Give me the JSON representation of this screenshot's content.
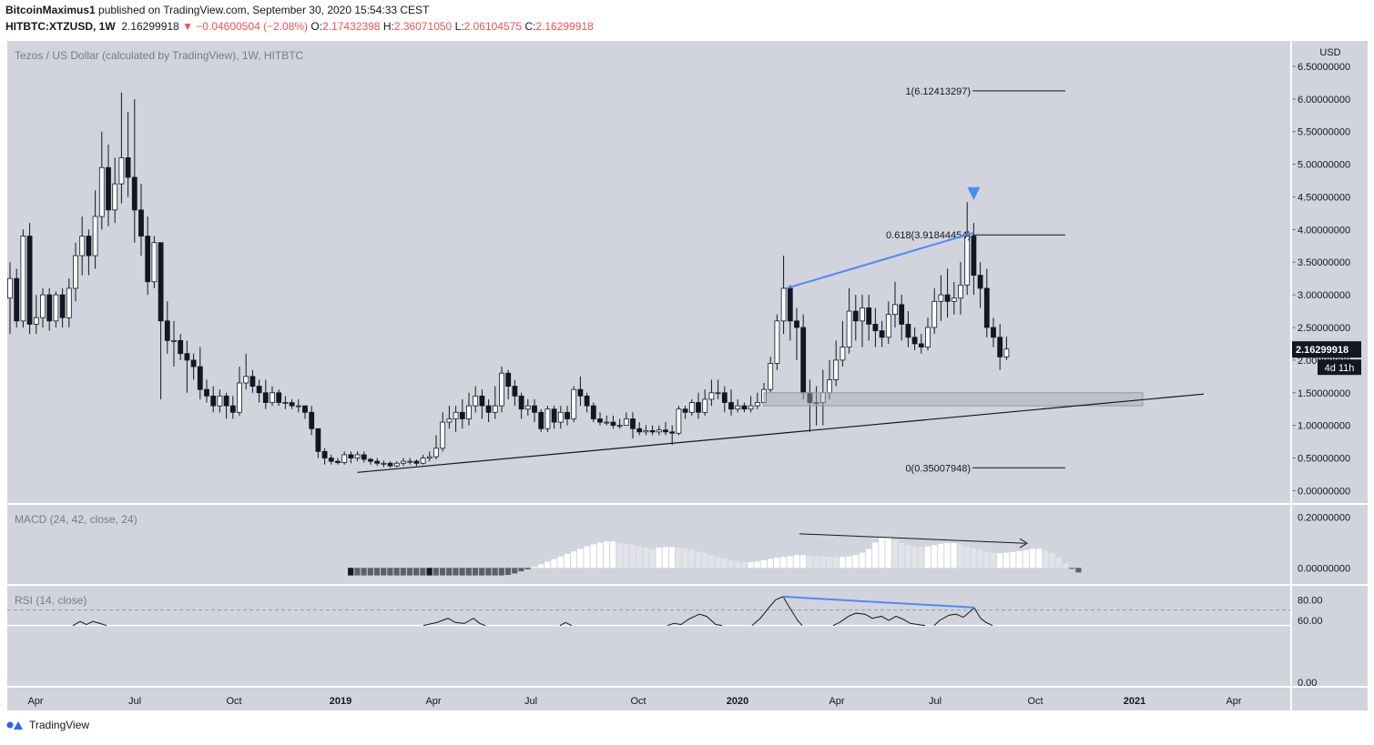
{
  "header": {
    "author": "BitcoinMaximus1",
    "published": "published on TradingView.com, September 30, 2020 15:54:33 CEST",
    "symbol": "HITBTC:XTZUSD, 1W",
    "last": "2.16299918",
    "change": "▼ −0.04600504 (−2.08%)",
    "o_label": "O:",
    "o_value": "2.17432398",
    "h_label": "H:",
    "h_value": "2.36071050",
    "l_label": "L:",
    "l_value": "2.06104575",
    "c_label": "C:",
    "c_value": "2.16299918"
  },
  "footer": {
    "brand": "TradingView"
  },
  "colors": {
    "pane_bg": "#d1d4dc",
    "bull": "#ffffff",
    "bear": "#131722",
    "blue": "#4c8bf5",
    "hist_light": "#ffffff",
    "hist_dark": "#5d606b"
  },
  "chart_data": [
    {
      "type": "candlestick",
      "title": "Tezos / US Dollar (calculated by TradingView), 1W, HITBTC",
      "y_axis_title": "USD",
      "ylim": [
        -0.05,
        6.75
      ],
      "y_ticks": [
        "6.50000000",
        "6.00000000",
        "5.50000000",
        "5.00000000",
        "4.50000000",
        "4.00000000",
        "3.50000000",
        "3.00000000",
        "2.50000000",
        "2.00000000",
        "1.50000000",
        "1.00000000",
        "0.50000000",
        "0.00000000"
      ],
      "y_tick_values": [
        6.5,
        6.0,
        5.5,
        5.0,
        4.5,
        4.0,
        3.5,
        3.0,
        2.5,
        2.0,
        1.5,
        1.0,
        0.5,
        0.0
      ],
      "x_ticks": [
        "Apr",
        "Jul",
        "Oct",
        "2019",
        "Apr",
        "Jul",
        "Oct",
        "2020",
        "Apr",
        "Jul",
        "Oct",
        "2021",
        "Apr"
      ],
      "x_tick_bold": [
        false,
        false,
        false,
        true,
        false,
        false,
        false,
        true,
        false,
        false,
        false,
        true,
        false
      ],
      "last_price_label": "2.16299918",
      "countdown_label": "4d 11h",
      "candles": [
        [
          2.95,
          3.25,
          2.4,
          3.5
        ],
        [
          3.25,
          2.6,
          2.5,
          3.4
        ],
        [
          2.6,
          3.9,
          2.5,
          4.0
        ],
        [
          3.9,
          2.55,
          2.4,
          4.1
        ],
        [
          2.55,
          2.65,
          2.4,
          3.0
        ],
        [
          2.65,
          3.0,
          2.5,
          3.1
        ],
        [
          3.0,
          2.6,
          2.45,
          3.1
        ],
        [
          2.6,
          3.0,
          2.5,
          3.05
        ],
        [
          3.0,
          2.65,
          2.5,
          3.1
        ],
        [
          2.65,
          3.1,
          2.5,
          3.25
        ],
        [
          3.1,
          3.6,
          2.9,
          3.8
        ],
        [
          3.6,
          3.9,
          3.3,
          4.2
        ],
        [
          3.9,
          3.6,
          3.3,
          4.0
        ],
        [
          3.6,
          4.2,
          3.4,
          4.6
        ],
        [
          4.2,
          4.95,
          4.0,
          5.5
        ],
        [
          4.95,
          4.3,
          4.05,
          5.3
        ],
        [
          4.3,
          4.7,
          4.1,
          5.1
        ],
        [
          4.7,
          5.1,
          4.4,
          6.1
        ],
        [
          5.1,
          4.8,
          4.5,
          5.8
        ],
        [
          4.8,
          4.3,
          3.8,
          6.0
        ],
        [
          4.3,
          3.9,
          3.6,
          4.7
        ],
        [
          3.9,
          3.2,
          3.0,
          4.2
        ],
        [
          3.2,
          3.8,
          3.1,
          3.9
        ],
        [
          3.8,
          2.6,
          1.4,
          3.8
        ],
        [
          2.6,
          2.3,
          2.1,
          2.9
        ],
        [
          2.3,
          2.3,
          1.9,
          2.6
        ],
        [
          2.3,
          2.1,
          2.0,
          2.4
        ],
        [
          2.1,
          2.0,
          1.5,
          2.3
        ],
        [
          2.0,
          1.9,
          1.7,
          2.1
        ],
        [
          1.9,
          1.55,
          1.4,
          2.2
        ],
        [
          1.55,
          1.45,
          1.35,
          1.7
        ],
        [
          1.45,
          1.3,
          1.2,
          1.6
        ],
        [
          1.3,
          1.45,
          1.2,
          1.55
        ],
        [
          1.45,
          1.3,
          1.1,
          1.5
        ],
        [
          1.3,
          1.2,
          1.1,
          1.45
        ],
        [
          1.2,
          1.65,
          1.15,
          1.9
        ],
        [
          1.65,
          1.75,
          1.55,
          2.1
        ],
        [
          1.75,
          1.6,
          1.5,
          1.85
        ],
        [
          1.6,
          1.5,
          1.35,
          1.7
        ],
        [
          1.5,
          1.35,
          1.25,
          1.7
        ],
        [
          1.35,
          1.5,
          1.3,
          1.6
        ],
        [
          1.5,
          1.35,
          1.3,
          1.55
        ],
        [
          1.35,
          1.35,
          1.25,
          1.45
        ],
        [
          1.35,
          1.3,
          1.25,
          1.4
        ],
        [
          1.3,
          1.3,
          1.2,
          1.4
        ],
        [
          1.3,
          1.2,
          1.1,
          1.3
        ],
        [
          1.2,
          0.95,
          0.85,
          1.3
        ],
        [
          0.95,
          0.6,
          0.5,
          0.95
        ],
        [
          0.6,
          0.5,
          0.4,
          0.65
        ],
        [
          0.5,
          0.45,
          0.4,
          0.55
        ],
        [
          0.45,
          0.43,
          0.4,
          0.5
        ],
        [
          0.43,
          0.55,
          0.4,
          0.6
        ],
        [
          0.55,
          0.5,
          0.42,
          0.6
        ],
        [
          0.5,
          0.55,
          0.45,
          0.6
        ],
        [
          0.55,
          0.48,
          0.43,
          0.6
        ],
        [
          0.48,
          0.45,
          0.4,
          0.5
        ],
        [
          0.45,
          0.42,
          0.38,
          0.5
        ],
        [
          0.42,
          0.42,
          0.36,
          0.46
        ],
        [
          0.42,
          0.38,
          0.35,
          0.45
        ],
        [
          0.38,
          0.42,
          0.36,
          0.45
        ],
        [
          0.42,
          0.45,
          0.38,
          0.5
        ],
        [
          0.45,
          0.45,
          0.4,
          0.5
        ],
        [
          0.45,
          0.42,
          0.38,
          0.48
        ],
        [
          0.42,
          0.5,
          0.4,
          0.55
        ],
        [
          0.5,
          0.52,
          0.45,
          0.6
        ],
        [
          0.52,
          0.65,
          0.48,
          0.85
        ],
        [
          0.65,
          1.05,
          0.6,
          1.2
        ],
        [
          1.05,
          1.1,
          0.95,
          1.3
        ],
        [
          1.1,
          1.2,
          0.9,
          1.3
        ],
        [
          1.2,
          1.1,
          0.95,
          1.4
        ],
        [
          1.1,
          1.3,
          1.0,
          1.5
        ],
        [
          1.3,
          1.45,
          1.2,
          1.6
        ],
        [
          1.45,
          1.3,
          1.1,
          1.55
        ],
        [
          1.3,
          1.2,
          1.05,
          1.4
        ],
        [
          1.2,
          1.3,
          1.1,
          1.6
        ],
        [
          1.3,
          1.8,
          1.2,
          1.9
        ],
        [
          1.8,
          1.6,
          1.4,
          1.85
        ],
        [
          1.6,
          1.45,
          1.3,
          1.7
        ],
        [
          1.45,
          1.25,
          1.1,
          1.5
        ],
        [
          1.25,
          1.3,
          1.15,
          1.4
        ],
        [
          1.3,
          1.2,
          1.05,
          1.4
        ],
        [
          1.2,
          0.95,
          0.9,
          1.25
        ],
        [
          0.95,
          1.25,
          0.9,
          1.3
        ],
        [
          1.25,
          1.05,
          0.95,
          1.3
        ],
        [
          1.05,
          1.2,
          0.95,
          1.3
        ],
        [
          1.2,
          1.1,
          1.0,
          1.3
        ],
        [
          1.1,
          1.55,
          1.05,
          1.6
        ],
        [
          1.55,
          1.45,
          1.3,
          1.75
        ],
        [
          1.45,
          1.3,
          1.2,
          1.5
        ],
        [
          1.3,
          1.1,
          1.05,
          1.35
        ],
        [
          1.1,
          1.05,
          1.0,
          1.2
        ],
        [
          1.05,
          1.05,
          1.0,
          1.15
        ],
        [
          1.05,
          1.0,
          0.95,
          1.15
        ],
        [
          1.0,
          1.0,
          0.95,
          1.1
        ],
        [
          1.0,
          1.1,
          1.0,
          1.2
        ],
        [
          1.1,
          0.95,
          0.8,
          1.2
        ],
        [
          0.95,
          0.9,
          0.85,
          1.05
        ],
        [
          0.9,
          0.92,
          0.85,
          1.0
        ],
        [
          0.92,
          0.9,
          0.85,
          1.0
        ],
        [
          0.9,
          0.93,
          0.85,
          1.0
        ],
        [
          0.93,
          0.9,
          0.85,
          1.05
        ],
        [
          0.9,
          0.88,
          0.7,
          1.0
        ],
        [
          0.88,
          1.25,
          0.85,
          1.3
        ],
        [
          1.25,
          1.2,
          1.1,
          1.3
        ],
        [
          1.2,
          1.35,
          1.15,
          1.4
        ],
        [
          1.35,
          1.2,
          1.1,
          1.5
        ],
        [
          1.2,
          1.4,
          1.15,
          1.55
        ],
        [
          1.4,
          1.5,
          1.3,
          1.7
        ],
        [
          1.5,
          1.5,
          1.4,
          1.7
        ],
        [
          1.5,
          1.35,
          1.2,
          1.6
        ],
        [
          1.35,
          1.25,
          1.15,
          1.55
        ],
        [
          1.25,
          1.3,
          1.2,
          1.4
        ],
        [
          1.3,
          1.25,
          1.2,
          1.35
        ],
        [
          1.25,
          1.3,
          1.2,
          1.45
        ],
        [
          1.3,
          1.35,
          1.25,
          1.5
        ],
        [
          1.35,
          1.55,
          1.3,
          1.65
        ],
        [
          1.55,
          1.95,
          1.5,
          2.05
        ],
        [
          1.95,
          2.6,
          1.85,
          2.7
        ],
        [
          2.6,
          3.1,
          2.4,
          3.6
        ],
        [
          3.1,
          2.6,
          2.3,
          3.15
        ],
        [
          2.6,
          2.5,
          2.0,
          2.8
        ],
        [
          2.5,
          1.5,
          1.4,
          2.7
        ],
        [
          1.5,
          1.35,
          0.9,
          1.7
        ],
        [
          1.35,
          1.35,
          1.0,
          1.6
        ],
        [
          1.35,
          1.5,
          1.0,
          1.85
        ],
        [
          1.5,
          1.7,
          1.4,
          2.0
        ],
        [
          1.7,
          2.0,
          1.6,
          2.3
        ],
        [
          2.0,
          2.2,
          1.9,
          2.6
        ],
        [
          2.2,
          2.75,
          2.1,
          3.1
        ],
        [
          2.75,
          2.6,
          2.3,
          3.0
        ],
        [
          2.6,
          2.8,
          2.2,
          3.0
        ],
        [
          2.8,
          2.55,
          2.3,
          3.0
        ],
        [
          2.55,
          2.45,
          2.2,
          2.8
        ],
        [
          2.45,
          2.35,
          2.2,
          2.6
        ],
        [
          2.35,
          2.7,
          2.25,
          2.9
        ],
        [
          2.7,
          2.85,
          2.5,
          3.2
        ],
        [
          2.85,
          2.55,
          2.3,
          3.0
        ],
        [
          2.55,
          2.35,
          2.2,
          2.75
        ],
        [
          2.35,
          2.25,
          2.15,
          2.5
        ],
        [
          2.25,
          2.2,
          2.1,
          2.4
        ],
        [
          2.2,
          2.5,
          2.15,
          2.65
        ],
        [
          2.5,
          2.9,
          2.4,
          3.1
        ],
        [
          2.9,
          3.0,
          2.6,
          3.3
        ],
        [
          3.0,
          2.9,
          2.65,
          3.4
        ],
        [
          2.9,
          2.95,
          2.7,
          3.2
        ],
        [
          2.95,
          3.15,
          2.7,
          3.5
        ],
        [
          3.15,
          3.9,
          3.0,
          4.42
        ],
        [
          3.9,
          3.3,
          3.0,
          4.1
        ],
        [
          3.3,
          3.1,
          2.8,
          3.5
        ],
        [
          3.1,
          2.5,
          2.35,
          3.4
        ],
        [
          2.5,
          2.35,
          2.2,
          2.65
        ],
        [
          2.35,
          2.05,
          1.85,
          2.55
        ],
        [
          2.05,
          2.17,
          2.0,
          2.36
        ]
      ],
      "fib_levels": [
        {
          "label": "1(6.12413297)",
          "value": 6.12413297
        },
        {
          "label": "0.618(3.91844454)",
          "value": 3.91844454
        },
        {
          "label": "0(0.35007948)",
          "value": 0.35007948
        }
      ],
      "trendline": {
        "from": [
          3.1,
          0.28
        ],
        "to": [
          2.97,
          1.48
        ],
        "candle_from": 53,
        "candle_to_x_extension": true
      },
      "support_zone": [
        1.3,
        1.5
      ],
      "bearish_divergence_line": [
        3.1,
        3.95
      ]
    },
    {
      "type": "bar",
      "title": "MACD (24, 42, close, 24)",
      "ylim": [
        -0.035,
        0.22
      ],
      "y_ticks": [
        "0.20000000",
        "0.00000000"
      ],
      "y_tick_values": [
        0.2,
        0.0
      ],
      "hist": [
        -0.03,
        -0.03,
        -0.03,
        -0.03,
        -0.03,
        -0.03,
        -0.03,
        -0.03,
        -0.03,
        -0.03,
        -0.03,
        -0.03,
        -0.03,
        -0.03,
        -0.03,
        -0.03,
        -0.03,
        -0.03,
        -0.03,
        -0.03,
        -0.03,
        -0.03,
        -0.03,
        -0.03,
        -0.028,
        -0.022,
        -0.014,
        -0.006,
        0.004,
        0.014,
        0.024,
        0.034,
        0.045,
        0.055,
        0.065,
        0.075,
        0.085,
        0.093,
        0.1,
        0.104,
        0.104,
        0.1,
        0.095,
        0.09,
        0.085,
        0.08,
        0.075,
        0.08,
        0.082,
        0.082,
        0.08,
        0.078,
        0.072,
        0.065,
        0.058,
        0.05,
        0.043,
        0.037,
        0.03,
        0.025,
        0.022,
        0.022,
        0.025,
        0.03,
        0.035,
        0.04,
        0.043,
        0.046,
        0.05,
        0.05,
        0.048,
        0.046,
        0.045,
        0.044,
        0.043,
        0.043,
        0.045,
        0.05,
        0.06,
        0.075,
        0.1,
        0.12,
        0.12,
        0.11,
        0.098,
        0.09,
        0.085,
        0.083,
        0.085,
        0.09,
        0.095,
        0.098,
        0.098,
        0.092,
        0.085,
        0.078,
        0.07,
        0.064,
        0.058,
        0.058,
        0.06,
        0.063,
        0.066,
        0.07,
        0.075,
        0.075,
        0.068,
        0.058,
        0.04,
        0.018,
        -0.004,
        -0.018
      ],
      "hist_start_index": 52,
      "divergence_arrow": [
        0.12,
        0.09
      ]
    },
    {
      "type": "line",
      "title": "RSI (14, close)",
      "ylim": [
        0,
        90
      ],
      "y_ticks": [
        "80.00",
        "60.00",
        "0.00"
      ],
      "y_tick_values": [
        80,
        60,
        0
      ]
    }
  ]
}
